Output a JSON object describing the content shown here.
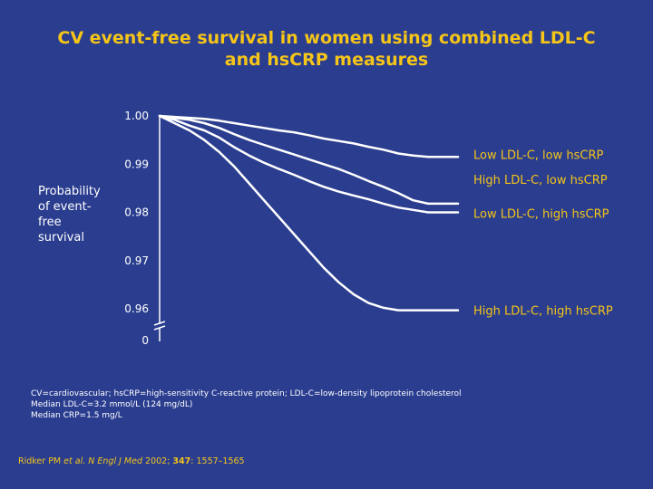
{
  "title": {
    "line1": "CV event-free survival in women using combined LDL-C",
    "line2": "and hsCRP measures"
  },
  "colors": {
    "background": "#2a3d8f",
    "title": "#f5c518",
    "series_label": "#f5c518",
    "line": "#ffffff"
  },
  "ylabel_lines": [
    "Probability",
    "of event-",
    "free",
    "survival"
  ],
  "footnotes": [
    "CV=cardiovascular; hsCRP=high-sensitivity C-reactive protein; LDL-C=low-density lipoprotein cholesterol",
    "Median LDL-C=3.2 mmol/L (124 mg/dL)",
    "Median CRP=1.5 mg/L"
  ],
  "citation": {
    "authors": "Ridker PM ",
    "etal": "et al.",
    "journal": "N Engl J Med",
    "year": " 2002; ",
    "volume": "347",
    "pages": ": 1557–1565"
  },
  "chart_data": {
    "type": "line",
    "ylabel": "Probability of event-free survival",
    "xlabel": "",
    "ylim": [
      0.96,
      1.0
    ],
    "y_ticks": [
      {
        "value": 1.0,
        "label": "1.00"
      },
      {
        "value": 0.99,
        "label": "0.99"
      },
      {
        "value": 0.98,
        "label": "0.98"
      },
      {
        "value": 0.97,
        "label": "0.97"
      },
      {
        "value": 0.96,
        "label": "0.96"
      }
    ],
    "axis_break_label": "0",
    "grid": false,
    "series": [
      {
        "name": "Low LDL-C, low hsCRP",
        "x": [
          0,
          0.05,
          0.1,
          0.15,
          0.2,
          0.25,
          0.3,
          0.35,
          0.4,
          0.45,
          0.5,
          0.55,
          0.6,
          0.65,
          0.7,
          0.75,
          0.8,
          0.85,
          0.9,
          0.95,
          1.0
        ],
        "y": [
          1.0,
          0.9998,
          0.9996,
          0.9994,
          0.999,
          0.9985,
          0.998,
          0.9975,
          0.997,
          0.9966,
          0.996,
          0.9953,
          0.9948,
          0.9943,
          0.9936,
          0.993,
          0.9922,
          0.9918,
          0.9915,
          0.9915,
          0.9915
        ]
      },
      {
        "name": "High LDL-C, low hsCRP",
        "x": [
          0,
          0.05,
          0.1,
          0.15,
          0.2,
          0.25,
          0.3,
          0.35,
          0.4,
          0.45,
          0.5,
          0.55,
          0.6,
          0.65,
          0.7,
          0.75,
          0.8,
          0.85,
          0.9,
          0.95,
          1.0
        ],
        "y": [
          1.0,
          0.9996,
          0.9992,
          0.9985,
          0.9975,
          0.9962,
          0.995,
          0.994,
          0.993,
          0.992,
          0.991,
          0.99,
          0.989,
          0.9878,
          0.9865,
          0.9853,
          0.984,
          0.9825,
          0.9818,
          0.9818,
          0.9818
        ]
      },
      {
        "name": "Low LDL-C, high hsCRP",
        "x": [
          0,
          0.05,
          0.1,
          0.15,
          0.2,
          0.25,
          0.3,
          0.35,
          0.4,
          0.45,
          0.5,
          0.55,
          0.6,
          0.65,
          0.7,
          0.75,
          0.8,
          0.85,
          0.9,
          0.95,
          1.0
        ],
        "y": [
          1.0,
          0.9992,
          0.998,
          0.997,
          0.9955,
          0.9935,
          0.9918,
          0.9903,
          0.989,
          0.9878,
          0.9865,
          0.9853,
          0.9843,
          0.9835,
          0.9827,
          0.9818,
          0.981,
          0.9805,
          0.98,
          0.98,
          0.98
        ]
      },
      {
        "name": "High LDL-C, high hsCRP",
        "x": [
          0,
          0.05,
          0.1,
          0.15,
          0.2,
          0.25,
          0.3,
          0.35,
          0.4,
          0.45,
          0.5,
          0.55,
          0.6,
          0.65,
          0.7,
          0.75,
          0.8,
          0.85,
          0.9,
          0.95,
          1.0
        ],
        "y": [
          1.0,
          0.9985,
          0.997,
          0.995,
          0.9925,
          0.9895,
          0.986,
          0.9825,
          0.979,
          0.9755,
          0.972,
          0.9685,
          0.9655,
          0.963,
          0.9612,
          0.9602,
          0.9597,
          0.9597,
          0.9597,
          0.9597,
          0.9597
        ]
      }
    ]
  }
}
